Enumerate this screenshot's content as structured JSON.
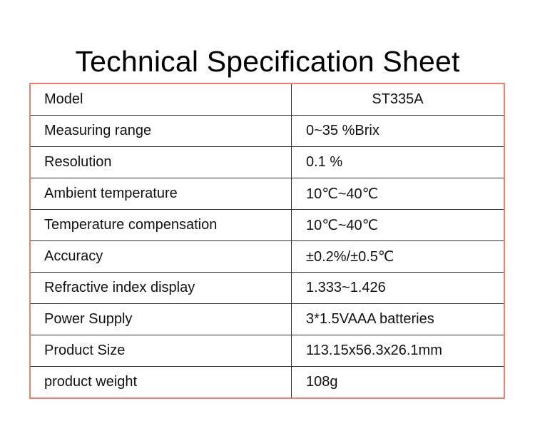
{
  "title": "Technical Specification Sheet",
  "colors": {
    "table_border": "#e8836a",
    "row_divider": "#333333",
    "text": "#111111"
  },
  "specs": [
    {
      "label": "Model",
      "value": "ST335A"
    },
    {
      "label": "Measuring range",
      "value": "0~35 %Brix"
    },
    {
      "label": "Resolution",
      "value": "0.1 %"
    },
    {
      "label": "Ambient temperature",
      "value": "10℃~40℃"
    },
    {
      "label": "Temperature compensation",
      "value": "10℃~40℃"
    },
    {
      "label": "Accuracy",
      "value": "±0.2%/±0.5℃"
    },
    {
      "label": "Refractive index display",
      "value": "1.333~1.426"
    },
    {
      "label": "Power Supply",
      "value": "3*1.5VAAA batteries"
    },
    {
      "label": "Product Size",
      "value": "113.15x56.3x26.1mm"
    },
    {
      "label": "product weight",
      "value": "108g"
    }
  ]
}
